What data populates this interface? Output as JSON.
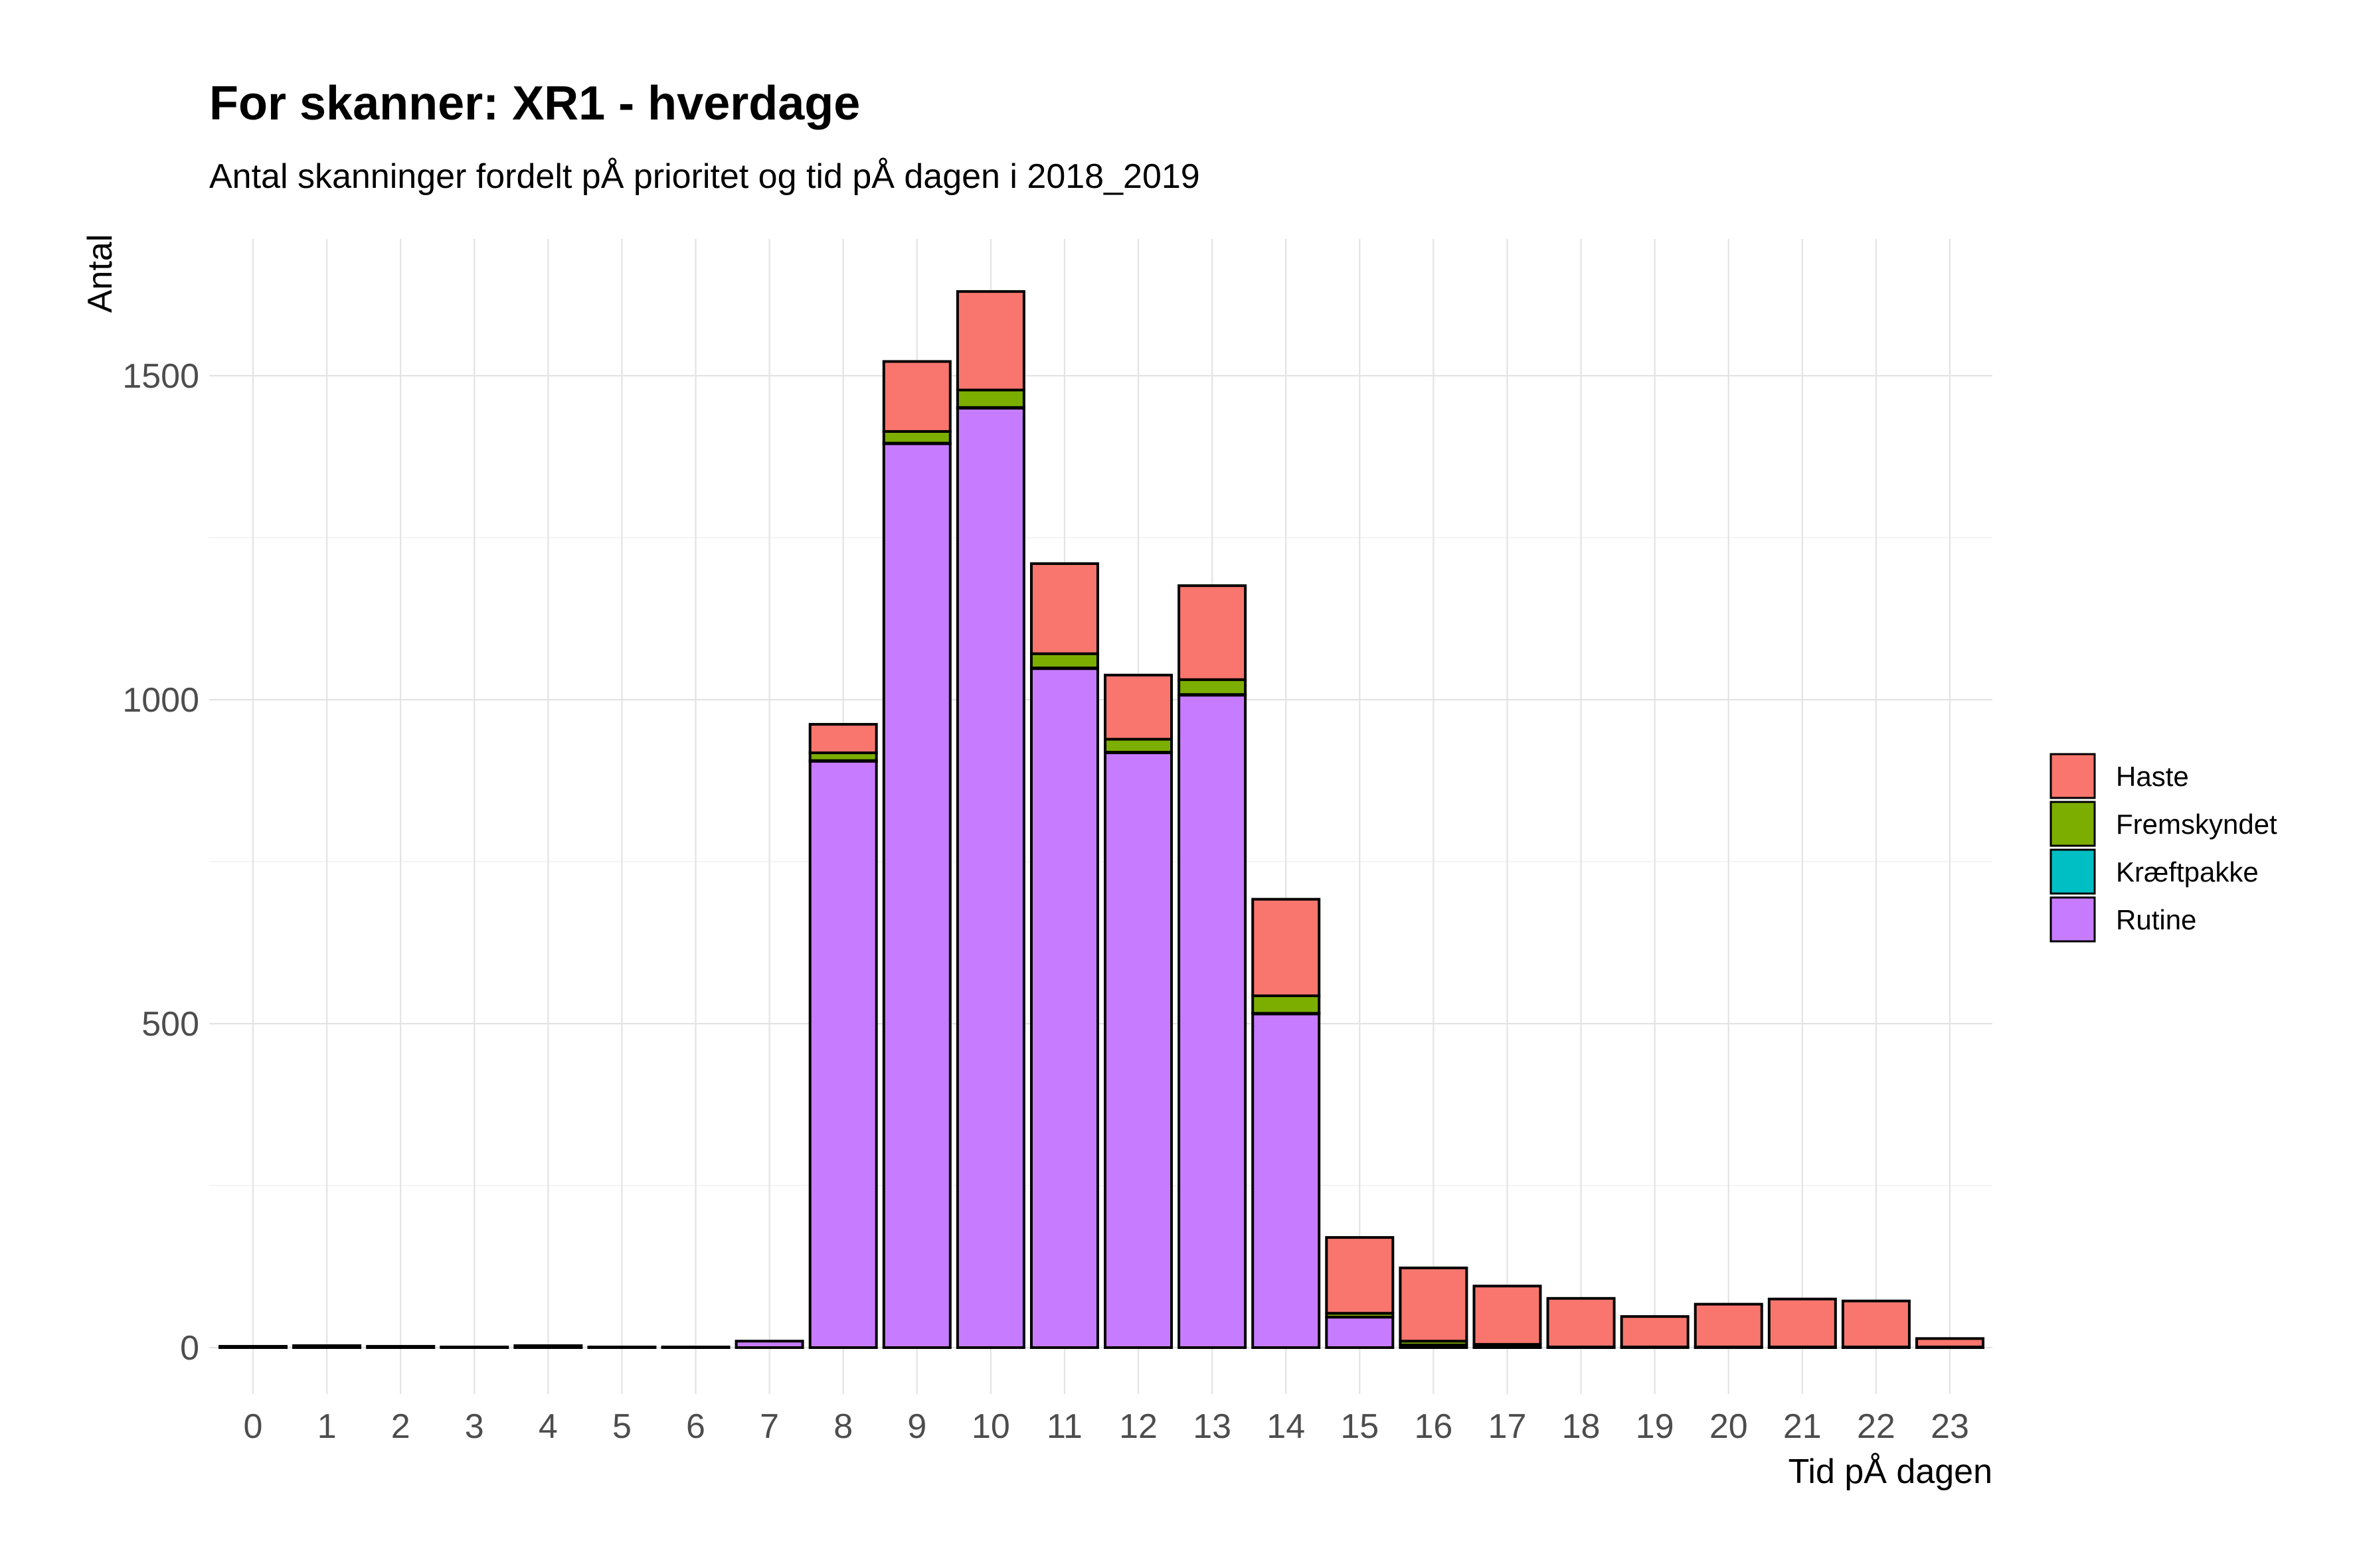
{
  "chart_data": {
    "type": "bar",
    "stacked": true,
    "title": "For skanner: XR1 - hverdage",
    "subtitle": "Antal skanninger fordelt pÅ prioritet og tid pÅ dagen i 2018_2019",
    "xlabel": "Tid pÅ dagen",
    "ylabel": "Antal",
    "ylim": [
      -110,
      1710
    ],
    "yticks": [
      0,
      500,
      1000,
      1500
    ],
    "grid": true,
    "legend_position": "right",
    "categories": [
      "0",
      "1",
      "2",
      "3",
      "4",
      "5",
      "6",
      "7",
      "8",
      "9",
      "10",
      "11",
      "12",
      "13",
      "14",
      "15",
      "16",
      "17",
      "18",
      "19",
      "20",
      "21",
      "22",
      "23"
    ],
    "series": [
      {
        "name": "Rutine",
        "color": "#C77CFF",
        "values": [
          2,
          3,
          2,
          1,
          3,
          1,
          1,
          10,
          905,
          1395,
          1450,
          1048,
          918,
          1007,
          515,
          47,
          4,
          2,
          1,
          1,
          1,
          1,
          1,
          1
        ]
      },
      {
        "name": "Kræftpakke",
        "color": "#00BFC4",
        "values": [
          0,
          0,
          0,
          0,
          0,
          0,
          0,
          0,
          1,
          1,
          1,
          1,
          1,
          1,
          1,
          0,
          0,
          0,
          0,
          0,
          0,
          0,
          0,
          0
        ]
      },
      {
        "name": "Fremskyndet",
        "color": "#7CAE00",
        "values": [
          0,
          0,
          0,
          0,
          0,
          0,
          0,
          0,
          12,
          18,
          27,
          22,
          20,
          23,
          27,
          6,
          6,
          3,
          0,
          0,
          0,
          0,
          0,
          0
        ]
      },
      {
        "name": "Haste",
        "color": "#F8766D",
        "values": [
          0,
          0,
          0,
          0,
          0,
          0,
          0,
          0,
          44,
          108,
          152,
          139,
          99,
          145,
          149,
          117,
          113,
          90,
          75,
          47,
          66,
          74,
          71,
          13
        ]
      }
    ],
    "legend_order": [
      "Haste",
      "Fremskyndet",
      "Kræftpakke",
      "Rutine"
    ]
  }
}
